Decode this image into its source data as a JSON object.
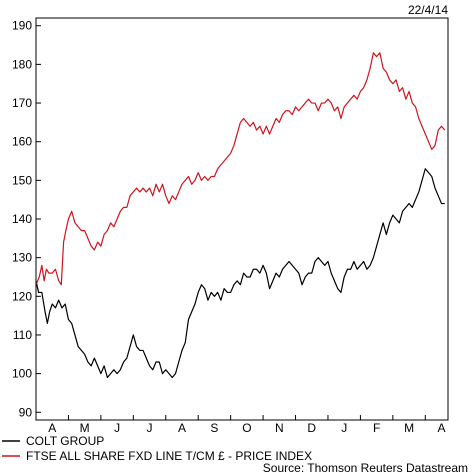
{
  "chart_data": {
    "type": "line",
    "date_label": "22/4/14",
    "source": "Source: Thomson Reuters Datastream",
    "ylim": [
      88,
      192
    ],
    "yticks": [
      90,
      100,
      110,
      120,
      130,
      140,
      150,
      160,
      170,
      180,
      190
    ],
    "months": [
      "A",
      "M",
      "J",
      "J",
      "A",
      "S",
      "O",
      "N",
      "D",
      "J",
      "F",
      "M",
      "A"
    ],
    "x_range": [
      0,
      12.7
    ],
    "grid": false,
    "legend_position": "bottom-left",
    "series": [
      {
        "name": "COLT GROUP",
        "color": "#000000",
        "points": [
          [
            0.0,
            124
          ],
          [
            0.08,
            121
          ],
          [
            0.18,
            121
          ],
          [
            0.28,
            116
          ],
          [
            0.35,
            113
          ],
          [
            0.42,
            116
          ],
          [
            0.5,
            118
          ],
          [
            0.6,
            117
          ],
          [
            0.7,
            119
          ],
          [
            0.8,
            117
          ],
          [
            0.9,
            118
          ],
          [
            1.0,
            114
          ],
          [
            1.1,
            113
          ],
          [
            1.2,
            110
          ],
          [
            1.3,
            107
          ],
          [
            1.4,
            106
          ],
          [
            1.5,
            105
          ],
          [
            1.6,
            103
          ],
          [
            1.7,
            102
          ],
          [
            1.8,
            104
          ],
          [
            1.9,
            102
          ],
          [
            2.0,
            100
          ],
          [
            2.1,
            102
          ],
          [
            2.2,
            99
          ],
          [
            2.3,
            100
          ],
          [
            2.4,
            101
          ],
          [
            2.5,
            100
          ],
          [
            2.6,
            101
          ],
          [
            2.7,
            103
          ],
          [
            2.8,
            104
          ],
          [
            2.9,
            107
          ],
          [
            3.0,
            110
          ],
          [
            3.1,
            107
          ],
          [
            3.2,
            106
          ],
          [
            3.3,
            106
          ],
          [
            3.4,
            104
          ],
          [
            3.5,
            102
          ],
          [
            3.6,
            101
          ],
          [
            3.7,
            103
          ],
          [
            3.8,
            103
          ],
          [
            3.9,
            100
          ],
          [
            4.0,
            101
          ],
          [
            4.1,
            100
          ],
          [
            4.2,
            99
          ],
          [
            4.3,
            100
          ],
          [
            4.4,
            103
          ],
          [
            4.5,
            106
          ],
          [
            4.6,
            108
          ],
          [
            4.7,
            114
          ],
          [
            4.8,
            116
          ],
          [
            4.9,
            118
          ],
          [
            5.0,
            121
          ],
          [
            5.1,
            123
          ],
          [
            5.2,
            122
          ],
          [
            5.3,
            119
          ],
          [
            5.4,
            121
          ],
          [
            5.5,
            120
          ],
          [
            5.6,
            121
          ],
          [
            5.7,
            119
          ],
          [
            5.8,
            122
          ],
          [
            5.9,
            121
          ],
          [
            6.0,
            121
          ],
          [
            6.1,
            123
          ],
          [
            6.2,
            124
          ],
          [
            6.3,
            123
          ],
          [
            6.4,
            126
          ],
          [
            6.5,
            125
          ],
          [
            6.6,
            125
          ],
          [
            6.7,
            127
          ],
          [
            6.8,
            127
          ],
          [
            6.9,
            126
          ],
          [
            7.0,
            128
          ],
          [
            7.1,
            126
          ],
          [
            7.2,
            122
          ],
          [
            7.3,
            124
          ],
          [
            7.4,
            126
          ],
          [
            7.5,
            125
          ],
          [
            7.6,
            127
          ],
          [
            7.7,
            128
          ],
          [
            7.8,
            129
          ],
          [
            7.9,
            128
          ],
          [
            8.0,
            127
          ],
          [
            8.1,
            126
          ],
          [
            8.2,
            123
          ],
          [
            8.3,
            125
          ],
          [
            8.4,
            126
          ],
          [
            8.5,
            126
          ],
          [
            8.6,
            129
          ],
          [
            8.7,
            130
          ],
          [
            8.8,
            129
          ],
          [
            8.9,
            128
          ],
          [
            9.0,
            129
          ],
          [
            9.1,
            126
          ],
          [
            9.2,
            124
          ],
          [
            9.3,
            122
          ],
          [
            9.4,
            121
          ],
          [
            9.5,
            125
          ],
          [
            9.6,
            127
          ],
          [
            9.7,
            127
          ],
          [
            9.8,
            129
          ],
          [
            9.9,
            127
          ],
          [
            10.0,
            128
          ],
          [
            10.1,
            129
          ],
          [
            10.2,
            127
          ],
          [
            10.3,
            128
          ],
          [
            10.4,
            130
          ],
          [
            10.5,
            133
          ],
          [
            10.6,
            136
          ],
          [
            10.7,
            139
          ],
          [
            10.8,
            136
          ],
          [
            10.9,
            139
          ],
          [
            11.0,
            141
          ],
          [
            11.1,
            140
          ],
          [
            11.2,
            139
          ],
          [
            11.3,
            142
          ],
          [
            11.4,
            143
          ],
          [
            11.5,
            144
          ],
          [
            11.6,
            143
          ],
          [
            11.7,
            145
          ],
          [
            11.8,
            147
          ],
          [
            11.9,
            150
          ],
          [
            12.0,
            153
          ],
          [
            12.1,
            152
          ],
          [
            12.2,
            151
          ],
          [
            12.3,
            148
          ],
          [
            12.4,
            146
          ],
          [
            12.5,
            144
          ],
          [
            12.6,
            144
          ]
        ]
      },
      {
        "name": "FTSE ALL SHARE FXD LINE T/CM £ - PRICE INDEX",
        "color": "#d0141c",
        "points": [
          [
            0.0,
            123
          ],
          [
            0.1,
            125
          ],
          [
            0.18,
            128
          ],
          [
            0.25,
            124
          ],
          [
            0.32,
            127
          ],
          [
            0.4,
            126
          ],
          [
            0.5,
            126
          ],
          [
            0.6,
            127
          ],
          [
            0.7,
            124
          ],
          [
            0.78,
            123
          ],
          [
            0.85,
            134
          ],
          [
            0.92,
            137
          ],
          [
            1.0,
            140
          ],
          [
            1.1,
            142
          ],
          [
            1.2,
            139
          ],
          [
            1.3,
            138
          ],
          [
            1.4,
            137
          ],
          [
            1.5,
            137
          ],
          [
            1.6,
            135
          ],
          [
            1.7,
            133
          ],
          [
            1.8,
            132
          ],
          [
            1.9,
            134
          ],
          [
            2.0,
            133
          ],
          [
            2.1,
            136
          ],
          [
            2.2,
            137
          ],
          [
            2.3,
            139
          ],
          [
            2.4,
            138
          ],
          [
            2.5,
            140
          ],
          [
            2.6,
            142
          ],
          [
            2.7,
            143
          ],
          [
            2.8,
            143
          ],
          [
            2.9,
            146
          ],
          [
            3.0,
            147
          ],
          [
            3.1,
            148
          ],
          [
            3.2,
            147
          ],
          [
            3.3,
            148
          ],
          [
            3.4,
            147
          ],
          [
            3.5,
            148
          ],
          [
            3.6,
            146
          ],
          [
            3.7,
            149
          ],
          [
            3.8,
            147
          ],
          [
            3.9,
            149
          ],
          [
            4.0,
            146
          ],
          [
            4.1,
            144
          ],
          [
            4.2,
            146
          ],
          [
            4.3,
            145
          ],
          [
            4.4,
            147
          ],
          [
            4.5,
            149
          ],
          [
            4.6,
            150
          ],
          [
            4.7,
            151
          ],
          [
            4.8,
            149
          ],
          [
            4.9,
            150
          ],
          [
            5.0,
            152
          ],
          [
            5.1,
            150
          ],
          [
            5.2,
            151
          ],
          [
            5.3,
            150
          ],
          [
            5.4,
            151
          ],
          [
            5.5,
            151
          ],
          [
            5.6,
            153
          ],
          [
            5.7,
            154
          ],
          [
            5.8,
            155
          ],
          [
            5.9,
            156
          ],
          [
            6.0,
            157
          ],
          [
            6.1,
            159
          ],
          [
            6.2,
            162
          ],
          [
            6.3,
            165
          ],
          [
            6.4,
            166
          ],
          [
            6.5,
            165
          ],
          [
            6.6,
            164
          ],
          [
            6.7,
            165
          ],
          [
            6.8,
            163
          ],
          [
            6.9,
            164
          ],
          [
            7.0,
            162
          ],
          [
            7.1,
            164
          ],
          [
            7.2,
            162
          ],
          [
            7.3,
            164
          ],
          [
            7.4,
            166
          ],
          [
            7.5,
            165
          ],
          [
            7.6,
            167
          ],
          [
            7.7,
            168
          ],
          [
            7.8,
            168
          ],
          [
            7.9,
            167
          ],
          [
            8.0,
            169
          ],
          [
            8.1,
            168
          ],
          [
            8.2,
            169
          ],
          [
            8.3,
            170
          ],
          [
            8.4,
            171
          ],
          [
            8.5,
            170
          ],
          [
            8.6,
            170
          ],
          [
            8.7,
            168
          ],
          [
            8.8,
            170
          ],
          [
            8.9,
            170
          ],
          [
            9.0,
            171
          ],
          [
            9.1,
            170
          ],
          [
            9.2,
            168
          ],
          [
            9.3,
            169
          ],
          [
            9.4,
            166
          ],
          [
            9.5,
            169
          ],
          [
            9.6,
            170
          ],
          [
            9.7,
            171
          ],
          [
            9.8,
            172
          ],
          [
            9.9,
            171
          ],
          [
            10.0,
            173
          ],
          [
            10.1,
            174
          ],
          [
            10.2,
            176
          ],
          [
            10.3,
            179
          ],
          [
            10.4,
            183
          ],
          [
            10.5,
            182
          ],
          [
            10.6,
            183
          ],
          [
            10.7,
            179
          ],
          [
            10.8,
            178
          ],
          [
            10.9,
            176
          ],
          [
            11.0,
            175
          ],
          [
            11.1,
            176
          ],
          [
            11.2,
            173
          ],
          [
            11.3,
            174
          ],
          [
            11.4,
            171
          ],
          [
            11.5,
            173
          ],
          [
            11.6,
            170
          ],
          [
            11.7,
            169
          ],
          [
            11.8,
            166
          ],
          [
            11.9,
            164
          ],
          [
            12.0,
            162
          ],
          [
            12.1,
            160
          ],
          [
            12.2,
            158
          ],
          [
            12.3,
            159
          ],
          [
            12.4,
            163
          ],
          [
            12.5,
            164
          ],
          [
            12.6,
            163
          ]
        ]
      }
    ]
  }
}
